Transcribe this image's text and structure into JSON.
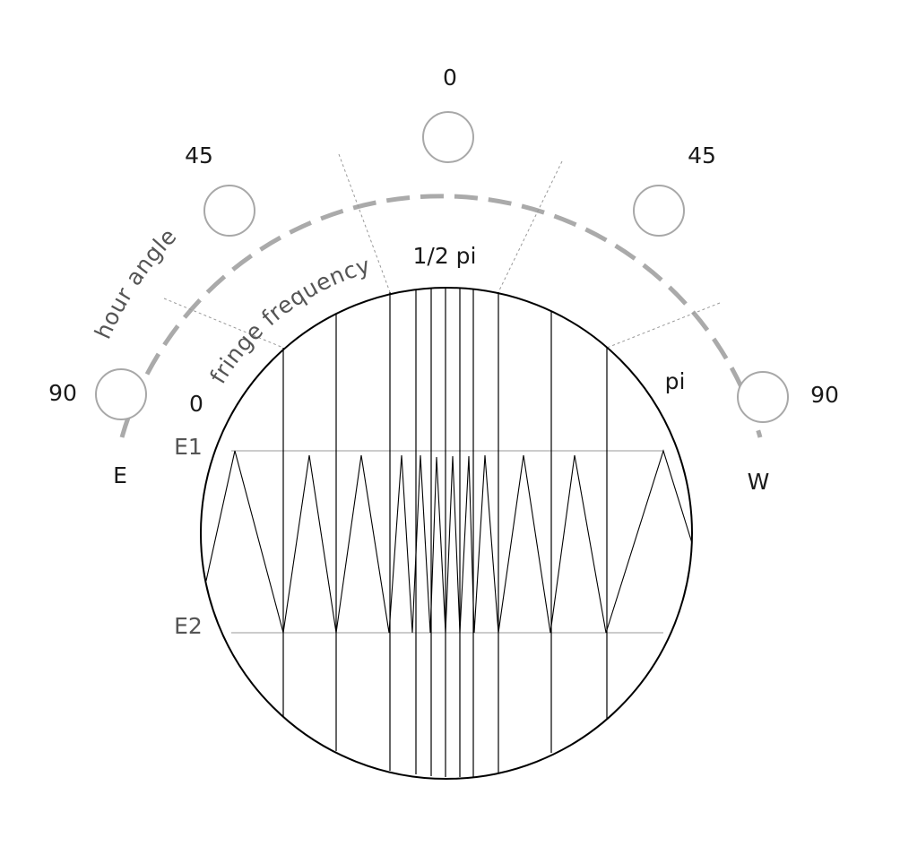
{
  "arc_labels": {
    "top": "0",
    "upper_left": "45",
    "upper_right": "45",
    "left": "90",
    "right": "90"
  },
  "directions": {
    "east": "E",
    "west": "W"
  },
  "curved_labels": {
    "hour_angle": "hour angle",
    "fringe_frequency": "fringe frequency"
  },
  "phase_labels": {
    "start": "0",
    "middle": "1/2 pi",
    "end": "pi"
  },
  "level_labels": {
    "upper": "E1",
    "lower": "E2"
  },
  "colors": {
    "arc": "#aaaaaa",
    "markers": "#a8a8a8",
    "lines": "#000000"
  }
}
